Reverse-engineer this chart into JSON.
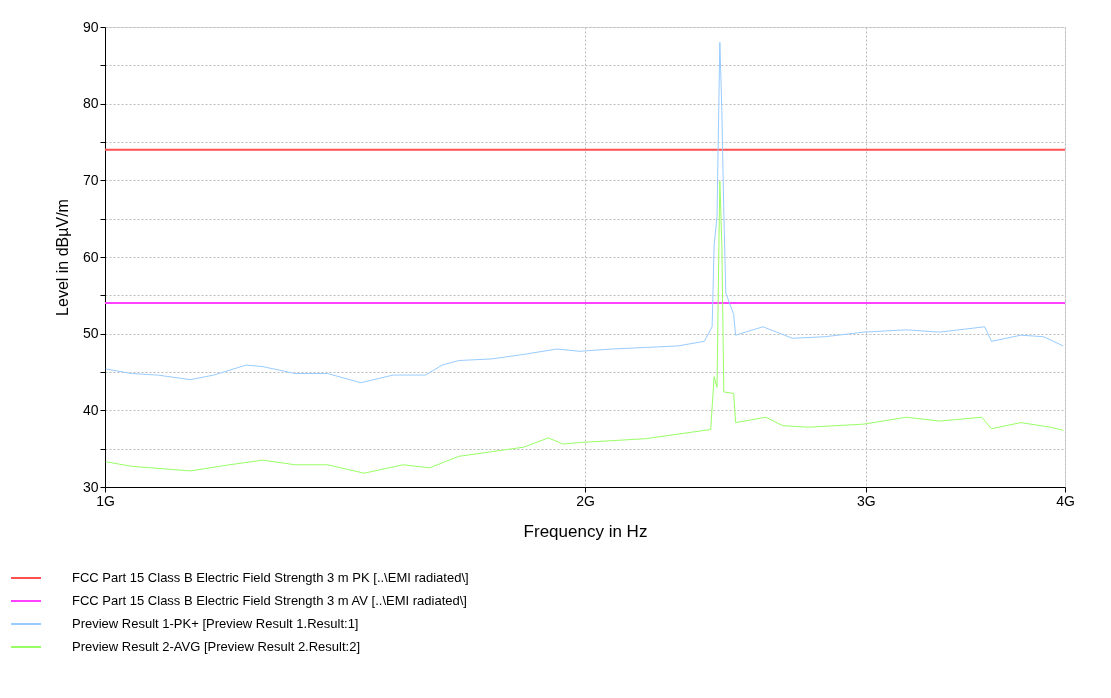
{
  "chart_data": {
    "type": "line",
    "xlabel": "Frequency in Hz",
    "ylabel": "Level in dBµV/m",
    "xlim": [
      1,
      4
    ],
    "xticks": [
      {
        "value": 1,
        "label": "1G"
      },
      {
        "value": 2,
        "label": "2G"
      },
      {
        "value": 3,
        "label": "3G"
      },
      {
        "value": 4,
        "label": "4G"
      }
    ],
    "ylim": [
      30,
      90
    ],
    "yticks": [
      30,
      {
        "value": 35,
        "label": null
      },
      40,
      {
        "value": 45,
        "label": null
      },
      50,
      {
        "value": 55,
        "label": null
      },
      60,
      {
        "value": 65,
        "label": null
      },
      70,
      {
        "value": 75,
        "label": null
      },
      80,
      {
        "value": 85,
        "label": null
      },
      90
    ],
    "log": "x",
    "grid": true,
    "legend": "bottom",
    "line_style": "solid",
    "marker": "none",
    "series": [
      {
        "name": "FCC Part 15 Class B Electric Field Strength 3 m PK  [..\\EMI radiated\\]",
        "color": "#ff5050",
        "x": [
          1,
          4
        ],
        "values": [
          74,
          74
        ]
      },
      {
        "name": "FCC Part 15 Class B Electric Field Strength 3 m AV  [..\\EMI radiated\\]",
        "color": "#ff40ff",
        "x": [
          1,
          4
        ],
        "values": [
          54,
          54
        ]
      },
      {
        "name": "Preview Result 1-PK+  [Preview Result 1.Result:1]",
        "color": "#99ccff",
        "x": [
          1.001,
          1.039,
          1.079,
          1.131,
          1.17,
          1.226,
          1.256,
          1.316,
          1.379,
          1.447,
          1.516,
          1.589,
          1.627,
          1.667,
          1.747,
          1.831,
          1.921,
          1.985,
          2.08,
          2.183,
          2.287,
          2.376,
          2.403,
          2.41,
          2.42,
          2.43,
          2.437,
          2.444,
          2.451,
          2.479,
          2.486,
          2.586,
          2.698,
          2.828,
          2.992,
          3.181,
          3.337,
          3.562,
          3.597,
          3.753,
          3.878,
          3.99
        ],
        "values": [
          45.4,
          44.8,
          44.6,
          44.0,
          44.6,
          45.9,
          45.7,
          44.8,
          44.8,
          43.6,
          44.6,
          44.6,
          45.9,
          46.5,
          46.7,
          47.3,
          48.0,
          47.7,
          48.0,
          48.2,
          48.4,
          49.0,
          50.9,
          61.5,
          65.3,
          88.0,
          79.1,
          65.7,
          55.3,
          52.5,
          49.8,
          50.9,
          49.4,
          49.6,
          50.2,
          50.5,
          50.2,
          50.9,
          49.0,
          49.8,
          49.6,
          48.4
        ]
      },
      {
        "name": "Preview Result 2-AVG  [Preview Result 2.Result:2]",
        "color": "#99ff66",
        "x": [
          1.001,
          1.039,
          1.131,
          1.197,
          1.256,
          1.316,
          1.379,
          1.454,
          1.538,
          1.598,
          1.667,
          1.747,
          1.831,
          1.897,
          1.938,
          1.985,
          2.183,
          2.398,
          2.41,
          2.42,
          2.427,
          2.43,
          2.437,
          2.444,
          2.479,
          2.486,
          2.597,
          2.661,
          2.761,
          2.992,
          3.181,
          3.337,
          3.547,
          3.597,
          3.753,
          3.916,
          3.99
        ],
        "values": [
          33.3,
          32.7,
          32.1,
          32.9,
          33.5,
          32.9,
          32.9,
          31.8,
          32.9,
          32.5,
          34.0,
          34.6,
          35.2,
          36.4,
          35.6,
          35.8,
          36.3,
          37.5,
          44.4,
          43.0,
          62.4,
          69.9,
          61.5,
          42.4,
          42.2,
          38.4,
          39.1,
          38.0,
          37.8,
          38.2,
          39.1,
          38.6,
          39.1,
          37.6,
          38.4,
          37.8,
          37.4
        ]
      }
    ]
  }
}
